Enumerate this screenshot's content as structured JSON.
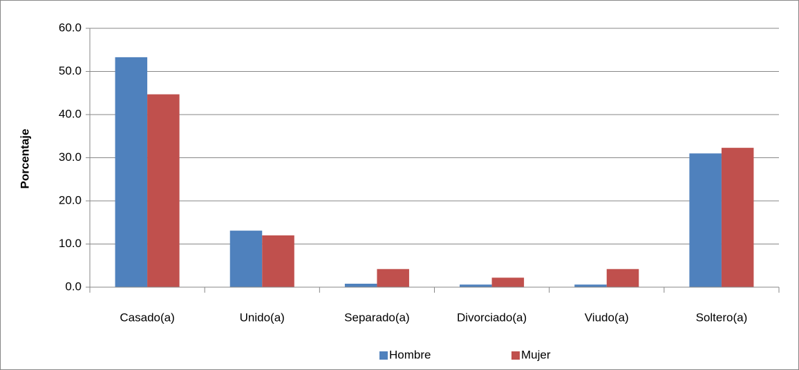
{
  "chart_data": {
    "type": "bar",
    "y_label": "Porcentaje",
    "categories": [
      "Casado(a)",
      "Unido(a)",
      "Separado(a)",
      "Divorciado(a)",
      "Viudo(a)",
      "Soltero(a)"
    ],
    "series": [
      {
        "name": "Hombre",
        "color": "#4f81bd",
        "values": [
          53.3,
          13.1,
          0.8,
          0.6,
          0.6,
          31.0
        ]
      },
      {
        "name": "Mujer",
        "color": "#c0504d",
        "values": [
          44.7,
          12.0,
          4.2,
          2.2,
          4.2,
          32.3
        ]
      }
    ],
    "ylim": [
      0,
      60
    ],
    "yticks": [
      {
        "value": 0,
        "label": "0.0"
      },
      {
        "value": 10,
        "label": "10.0"
      },
      {
        "value": 20,
        "label": "20.0"
      },
      {
        "value": 30,
        "label": "30.0"
      },
      {
        "value": 40,
        "label": "40.0"
      },
      {
        "value": 50,
        "label": "50.0"
      },
      {
        "value": 60,
        "label": "60.0"
      }
    ],
    "grid": true,
    "legend": "bottom"
  }
}
